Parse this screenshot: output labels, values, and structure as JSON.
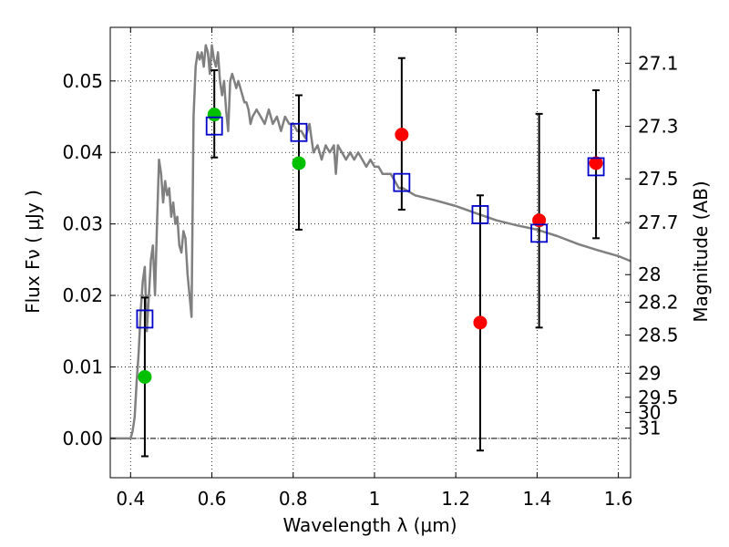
{
  "chart_data": {
    "type": "scatter",
    "xlabel": "Wavelength  λ (μm)",
    "ylabel": "Flux  Fν  ( μJy )",
    "y2label": "Magnitude (AB)",
    "xlim": [
      0.35,
      1.63
    ],
    "ylim": [
      -0.0055,
      0.0575
    ],
    "grid": true,
    "x_ticks": [
      {
        "value": 0.4,
        "label": "0.4"
      },
      {
        "value": 0.6,
        "label": "0.6"
      },
      {
        "value": 0.8,
        "label": "0.8"
      },
      {
        "value": 1.0,
        "label": "1"
      },
      {
        "value": 1.2,
        "label": "1.2"
      },
      {
        "value": 1.4,
        "label": "1.4"
      },
      {
        "value": 1.6,
        "label": "1.6"
      }
    ],
    "y_ticks": [
      {
        "value": 0.0,
        "label": "0.00"
      },
      {
        "value": 0.01,
        "label": "0.01"
      },
      {
        "value": 0.02,
        "label": "0.02"
      },
      {
        "value": 0.03,
        "label": "0.03"
      },
      {
        "value": 0.04,
        "label": "0.04"
      },
      {
        "value": 0.05,
        "label": "0.05"
      }
    ],
    "y2_ticks": [
      {
        "mag": 27.1,
        "label": "27.1"
      },
      {
        "mag": 27.3,
        "label": "27.3"
      },
      {
        "mag": 27.5,
        "label": "27.5"
      },
      {
        "mag": 27.7,
        "label": "27.7"
      },
      {
        "mag": 28.0,
        "label": "28"
      },
      {
        "mag": 28.2,
        "label": "28.2"
      },
      {
        "mag": 28.5,
        "label": "28.5"
      },
      {
        "mag": 29.0,
        "label": "29"
      },
      {
        "mag": 29.5,
        "label": "29.5"
      },
      {
        "mag": 30.0,
        "label": "30"
      },
      {
        "mag": 31.0,
        "label": "31"
      }
    ],
    "model_spectrum": {
      "name": "model SED",
      "color": "#808080",
      "points": [
        [
          0.35,
          0.0
        ],
        [
          0.4,
          0.0
        ],
        [
          0.405,
          0.001
        ],
        [
          0.41,
          0.003
        ],
        [
          0.415,
          0.008
        ],
        [
          0.42,
          0.012
        ],
        [
          0.425,
          0.018
        ],
        [
          0.43,
          0.022
        ],
        [
          0.435,
          0.024
        ],
        [
          0.44,
          0.015
        ],
        [
          0.445,
          0.02
        ],
        [
          0.45,
          0.025
        ],
        [
          0.455,
          0.027
        ],
        [
          0.46,
          0.02
        ],
        [
          0.465,
          0.03
        ],
        [
          0.47,
          0.039
        ],
        [
          0.475,
          0.037
        ],
        [
          0.48,
          0.033
        ],
        [
          0.485,
          0.036
        ],
        [
          0.49,
          0.034
        ],
        [
          0.495,
          0.035
        ],
        [
          0.5,
          0.031
        ],
        [
          0.505,
          0.033
        ],
        [
          0.51,
          0.03
        ],
        [
          0.515,
          0.031
        ],
        [
          0.52,
          0.027
        ],
        [
          0.525,
          0.026
        ],
        [
          0.53,
          0.029
        ],
        [
          0.535,
          0.028
        ],
        [
          0.54,
          0.023
        ],
        [
          0.545,
          0.02
        ],
        [
          0.55,
          0.017
        ],
        [
          0.555,
          0.045
        ],
        [
          0.56,
          0.052
        ],
        [
          0.565,
          0.054
        ],
        [
          0.57,
          0.053
        ],
        [
          0.575,
          0.054
        ],
        [
          0.58,
          0.052
        ],
        [
          0.585,
          0.055
        ],
        [
          0.59,
          0.054
        ],
        [
          0.595,
          0.051
        ],
        [
          0.6,
          0.055
        ],
        [
          0.605,
          0.053
        ],
        [
          0.61,
          0.052
        ],
        [
          0.615,
          0.054
        ],
        [
          0.62,
          0.05
        ],
        [
          0.625,
          0.048
        ],
        [
          0.63,
          0.05
        ],
        [
          0.635,
          0.046
        ],
        [
          0.64,
          0.043
        ],
        [
          0.645,
          0.05
        ],
        [
          0.65,
          0.051
        ],
        [
          0.655,
          0.05
        ],
        [
          0.66,
          0.049
        ],
        [
          0.665,
          0.05
        ],
        [
          0.67,
          0.049
        ],
        [
          0.675,
          0.048
        ],
        [
          0.68,
          0.047
        ],
        [
          0.685,
          0.047
        ],
        [
          0.69,
          0.046
        ],
        [
          0.695,
          0.044
        ],
        [
          0.7,
          0.045
        ],
        [
          0.71,
          0.046
        ],
        [
          0.72,
          0.045
        ],
        [
          0.73,
          0.044
        ],
        [
          0.74,
          0.046
        ],
        [
          0.75,
          0.044
        ],
        [
          0.76,
          0.045
        ],
        [
          0.77,
          0.043
        ],
        [
          0.78,
          0.045
        ],
        [
          0.79,
          0.044
        ],
        [
          0.8,
          0.044
        ],
        [
          0.81,
          0.043
        ],
        [
          0.82,
          0.043
        ],
        [
          0.83,
          0.042
        ],
        [
          0.84,
          0.044
        ],
        [
          0.85,
          0.04
        ],
        [
          0.86,
          0.041
        ],
        [
          0.87,
          0.039
        ],
        [
          0.88,
          0.041
        ],
        [
          0.89,
          0.04
        ],
        [
          0.9,
          0.041
        ],
        [
          0.905,
          0.037
        ],
        [
          0.91,
          0.041
        ],
        [
          0.92,
          0.04
        ],
        [
          0.93,
          0.039
        ],
        [
          0.94,
          0.04
        ],
        [
          0.95,
          0.039
        ],
        [
          0.96,
          0.04
        ],
        [
          0.97,
          0.039
        ],
        [
          0.98,
          0.038
        ],
        [
          0.99,
          0.039
        ],
        [
          1.0,
          0.038
        ],
        [
          1.01,
          0.038
        ],
        [
          1.02,
          0.037
        ],
        [
          1.03,
          0.037
        ],
        [
          1.04,
          0.037
        ],
        [
          1.05,
          0.036
        ],
        [
          1.06,
          0.035
        ],
        [
          1.07,
          0.035
        ],
        [
          1.1,
          0.034
        ],
        [
          1.15,
          0.0333
        ],
        [
          1.2,
          0.0325
        ],
        [
          1.25,
          0.0315
        ],
        [
          1.3,
          0.0305
        ],
        [
          1.35,
          0.0298
        ],
        [
          1.4,
          0.0292
        ],
        [
          1.45,
          0.0283
        ],
        [
          1.5,
          0.0272
        ],
        [
          1.55,
          0.0263
        ],
        [
          1.6,
          0.0255
        ],
        [
          1.63,
          0.0248
        ]
      ]
    },
    "series": [
      {
        "name": "green detections",
        "marker": "circle",
        "color": "#00c000",
        "points": [
          {
            "x": 0.435,
            "y": 0.0086
          },
          {
            "x": 0.606,
            "y": 0.0453
          },
          {
            "x": 0.814,
            "y": 0.0385
          }
        ]
      },
      {
        "name": "red detections",
        "marker": "circle",
        "color": "#ff0000",
        "points": [
          {
            "x": 1.067,
            "y": 0.0425
          },
          {
            "x": 1.26,
            "y": 0.0162
          },
          {
            "x": 1.405,
            "y": 0.0305
          },
          {
            "x": 1.545,
            "y": 0.0385
          }
        ]
      },
      {
        "name": "model photometry",
        "marker": "open-square",
        "color": "#0000c8",
        "points": [
          {
            "x": 0.435,
            "y": 0.0167
          },
          {
            "x": 0.606,
            "y": 0.0437
          },
          {
            "x": 0.814,
            "y": 0.0428
          },
          {
            "x": 1.067,
            "y": 0.0358
          },
          {
            "x": 1.26,
            "y": 0.0313
          },
          {
            "x": 1.405,
            "y": 0.0287
          },
          {
            "x": 1.545,
            "y": 0.038
          }
        ]
      }
    ],
    "error_bars": [
      {
        "x": 0.435,
        "low": -0.0025,
        "high": 0.0197
      },
      {
        "x": 0.606,
        "low": 0.0393,
        "high": 0.0515
      },
      {
        "x": 0.814,
        "low": 0.0292,
        "high": 0.048
      },
      {
        "x": 1.067,
        "low": 0.032,
        "high": 0.0532
      },
      {
        "x": 1.26,
        "low": -0.0017,
        "high": 0.034
      },
      {
        "x": 1.405,
        "low": 0.0155,
        "high": 0.0454
      },
      {
        "x": 1.545,
        "low": 0.028,
        "high": 0.0487
      }
    ]
  }
}
